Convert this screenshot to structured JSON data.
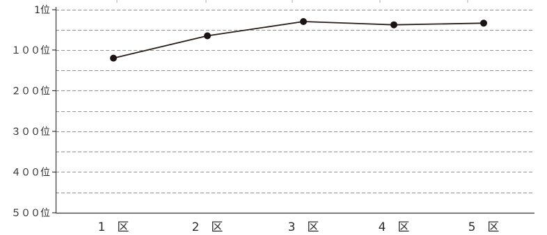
{
  "chart_data": {
    "type": "line",
    "title": "",
    "xlabel": "",
    "ylabel": "",
    "y_reversed": true,
    "ylim": [
      1,
      500
    ],
    "y_ticks": [
      {
        "value": 1,
        "label": "1位"
      },
      {
        "value": 100,
        "label": "１００位"
      },
      {
        "value": 200,
        "label": "２００位"
      },
      {
        "value": 300,
        "label": "３００位"
      },
      {
        "value": 400,
        "label": "４００位"
      },
      {
        "value": 500,
        "label": "５００位"
      }
    ],
    "grid": true,
    "categories": [
      "1　区",
      "2　区",
      "3　区",
      "4　区",
      "5　区"
    ],
    "series": [
      {
        "values": [
          120,
          65,
          30,
          38,
          34
        ]
      }
    ]
  }
}
